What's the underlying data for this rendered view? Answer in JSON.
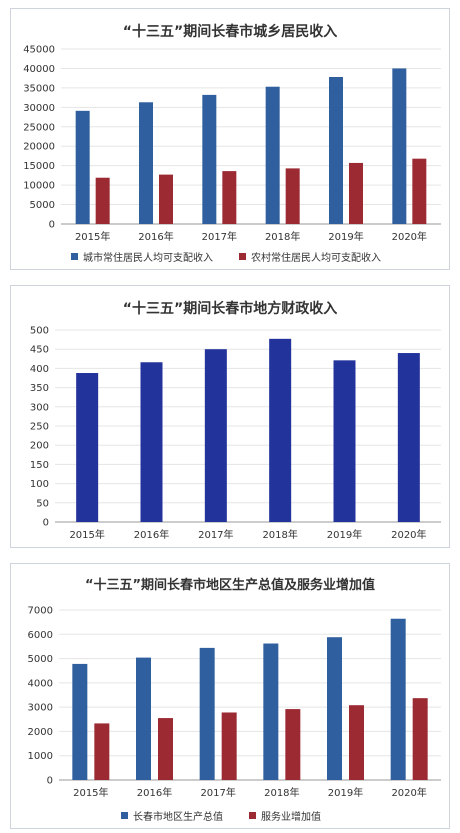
{
  "colors": {
    "blue": "#2f5f9f",
    "red": "#9b2a33",
    "navy": "#23339c",
    "axis": "#333333",
    "grid": "#e5e5e5"
  },
  "chart_data": [
    {
      "type": "bar",
      "title": "“十三五”期间长春市城乡居民收入",
      "categories": [
        "2015年",
        "2016年",
        "2017年",
        "2018年",
        "2019年",
        "2020年"
      ],
      "series": [
        {
          "name": "城市常住居民人均可支配收入",
          "values": [
            29100,
            31300,
            33200,
            35300,
            37800,
            40000
          ]
        },
        {
          "name": "农村常住居民人均可支配收入",
          "values": [
            11900,
            12700,
            13600,
            14300,
            15700,
            16800
          ]
        }
      ],
      "yticks": [
        "0",
        "5000",
        "10000",
        "15000",
        "20000",
        "25000",
        "30000",
        "35000",
        "40000",
        "45000"
      ],
      "ylim": [
        0,
        45000
      ],
      "legend": "bottom",
      "grid": true
    },
    {
      "type": "bar",
      "title": "“十三五”期间长春市地方财政收入",
      "categories": [
        "2015年",
        "2016年",
        "2017年",
        "2018年",
        "2019年",
        "2020年"
      ],
      "series": [
        {
          "values": [
            388,
            416,
            450,
            477,
            421,
            440
          ]
        }
      ],
      "yticks": [
        "0",
        "50",
        "100",
        "150",
        "200",
        "250",
        "300",
        "350",
        "400",
        "450",
        "500"
      ],
      "ylim": [
        0,
        500
      ],
      "grid": true
    },
    {
      "type": "bar",
      "title": "“十三五”期间长春市地区生产总值及服务业增加值",
      "categories": [
        "2015年",
        "2016年",
        "2017年",
        "2018年",
        "2019年",
        "2020年"
      ],
      "series": [
        {
          "name": "长春市地区生产总值",
          "values": [
            4780,
            5040,
            5440,
            5620,
            5880,
            6640
          ]
        },
        {
          "name": "服务业增加值",
          "values": [
            2330,
            2550,
            2780,
            2920,
            3080,
            3370
          ]
        }
      ],
      "yticks": [
        "0",
        "1000",
        "2000",
        "3000",
        "4000",
        "5000",
        "6000",
        "7000"
      ],
      "ylim": [
        0,
        7000
      ],
      "legend": "bottom",
      "grid": true
    }
  ]
}
